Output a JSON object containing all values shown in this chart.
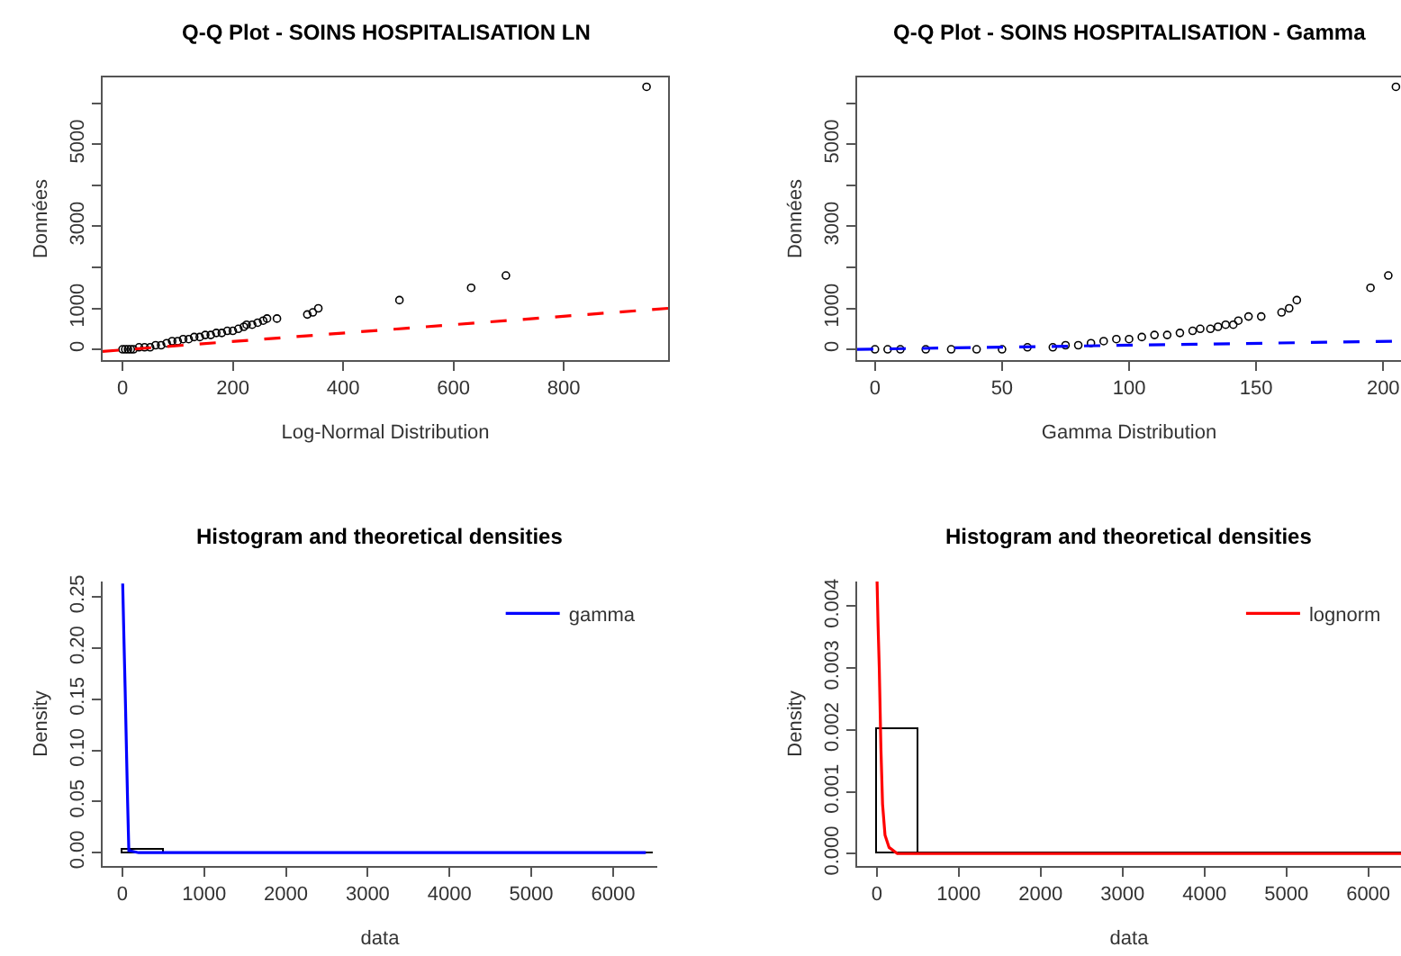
{
  "chart_data": [
    {
      "type": "scatter",
      "title": "Q-Q Plot - SOINS HOSPITALISATION LN",
      "xlabel": "Log-Normal Distribution",
      "ylabel": "Données",
      "xlim": [
        -36,
        989
      ],
      "ylim": [
        -262,
        6630
      ],
      "xticks": [
        0,
        200,
        400,
        600,
        800
      ],
      "yticks": [
        0,
        1000,
        {
          "value": 2000,
          "label": null
        },
        3000,
        {
          "value": 4000,
          "label": null
        },
        5000,
        {
          "value": 6000,
          "label": null
        }
      ],
      "series": [
        {
          "type": "scatter",
          "marker": "circle",
          "color": "#000000",
          "x": [
            0,
            5,
            10,
            15,
            20,
            30,
            40,
            50,
            60,
            70,
            80,
            90,
            100,
            110,
            120,
            130,
            140,
            150,
            160,
            170,
            180,
            190,
            200,
            210,
            220,
            225,
            235,
            245,
            255,
            262,
            280,
            335,
            345,
            355,
            502,
            632,
            695,
            950
          ],
          "values": [
            0,
            0,
            0,
            0,
            0,
            50,
            50,
            50,
            100,
            100,
            150,
            200,
            200,
            250,
            250,
            300,
            300,
            350,
            350,
            400,
            400,
            450,
            450,
            500,
            550,
            600,
            600,
            650,
            700,
            750,
            750,
            850,
            900,
            1000,
            1200,
            1500,
            1800,
            6400
          ]
        },
        {
          "type": "line",
          "color": "#ff0000",
          "line_style": "dashed",
          "x": [
            -36,
            989
          ],
          "values": [
            -50,
            1000
          ]
        }
      ]
    },
    {
      "type": "scatter",
      "title": "Q-Q Plot - SOINS HOSPITALISATION - Gamma",
      "xlabel": "Gamma Distribution",
      "ylabel": "Données",
      "xlim": [
        -7,
        207
      ],
      "ylim": [
        -262,
        6630
      ],
      "xticks": [
        0,
        50,
        100,
        150,
        200
      ],
      "yticks": [
        0,
        1000,
        {
          "value": 2000,
          "label": null
        },
        3000,
        {
          "value": 4000,
          "label": null
        },
        5000,
        {
          "value": 6000,
          "label": null
        }
      ],
      "series": [
        {
          "type": "scatter",
          "marker": "circle",
          "color": "#000000",
          "x": [
            0,
            5,
            10,
            20,
            30,
            40,
            50,
            60,
            70,
            75,
            80,
            85,
            90,
            95,
            100,
            105,
            110,
            115,
            120,
            125,
            128,
            132,
            135,
            138,
            141,
            143,
            147,
            152,
            160,
            163,
            166,
            195,
            202,
            205
          ],
          "values": [
            0,
            0,
            0,
            0,
            0,
            0,
            0,
            50,
            50,
            100,
            100,
            150,
            200,
            250,
            250,
            300,
            350,
            350,
            400,
            450,
            500,
            500,
            550,
            600,
            600,
            700,
            800,
            800,
            900,
            1000,
            1200,
            1500,
            1800,
            6400
          ]
        },
        {
          "type": "line",
          "color": "#0000ff",
          "line_style": "dashed",
          "x": [
            -7,
            207
          ],
          "values": [
            0,
            200
          ]
        }
      ]
    },
    {
      "type": "histogram",
      "title": "Histogram and theoretical densities",
      "xlabel": "data",
      "ylabel": "Density",
      "xlim": [
        -240,
        6540
      ],
      "ylim": [
        -0.013,
        0.265
      ],
      "xticks": [
        0,
        1000,
        2000,
        3000,
        4000,
        5000,
        6000
      ],
      "yticks": [
        {
          "value": 0,
          "label": "0.00"
        },
        {
          "value": 0.05,
          "label": "0.05"
        },
        {
          "value": 0.1,
          "label": "0.10"
        },
        {
          "value": 0.15,
          "label": "0.15"
        },
        {
          "value": 0.2,
          "label": "0.20"
        },
        {
          "value": 0.25,
          "label": "0.25"
        }
      ],
      "legend": "top right",
      "bins": [
        0,
        500,
        1000,
        1500,
        2000,
        2500,
        3000,
        3500,
        4000,
        4500,
        5000,
        5500,
        6000,
        6500
      ],
      "values": [
        0.002,
        0,
        0,
        0,
        0,
        0,
        0,
        0,
        0,
        0,
        0,
        0,
        0
      ],
      "series": [
        {
          "type": "line",
          "name": "gamma",
          "color": "#0000ff",
          "line_style": "solid",
          "x": [
            5,
            20,
            35,
            50,
            65,
            80,
            200,
            6400
          ],
          "values": [
            0.263,
            0.21,
            0.16,
            0.105,
            0.05,
            0.002,
            0,
            0
          ]
        }
      ]
    },
    {
      "type": "histogram",
      "title": "Histogram and theoretical densities",
      "xlabel": "data",
      "ylabel": "Density",
      "xlim": [
        -240,
        6400
      ],
      "ylim": [
        -0.0002,
        0.0044
      ],
      "xticks": [
        0,
        1000,
        2000,
        3000,
        4000,
        5000,
        6000
      ],
      "yticks": [
        {
          "value": 0,
          "label": "0.000"
        },
        {
          "value": 0.001,
          "label": "0.001"
        },
        {
          "value": 0.002,
          "label": "0.002"
        },
        {
          "value": 0.003,
          "label": "0.003"
        },
        {
          "value": 0.004,
          "label": "0.004"
        }
      ],
      "legend": "top right",
      "bins": [
        0,
        500,
        1000,
        1500,
        2000,
        2500,
        3000,
        3500,
        4000,
        4500,
        5000,
        5500,
        6000,
        6500
      ],
      "values": [
        0.002,
        0,
        0,
        0,
        0,
        0,
        0,
        0,
        0,
        0,
        0,
        0,
        0
      ],
      "series": [
        {
          "type": "line",
          "name": "lognorm",
          "color": "#ff0000",
          "line_style": "solid",
          "x": [
            3,
            15,
            30,
            50,
            70,
            100,
            150,
            250,
            6400
          ],
          "values": [
            0.0044,
            0.0037,
            0.003,
            0.0017,
            0.0008,
            0.0003,
            0.0001,
            0,
            0
          ]
        }
      ]
    }
  ]
}
